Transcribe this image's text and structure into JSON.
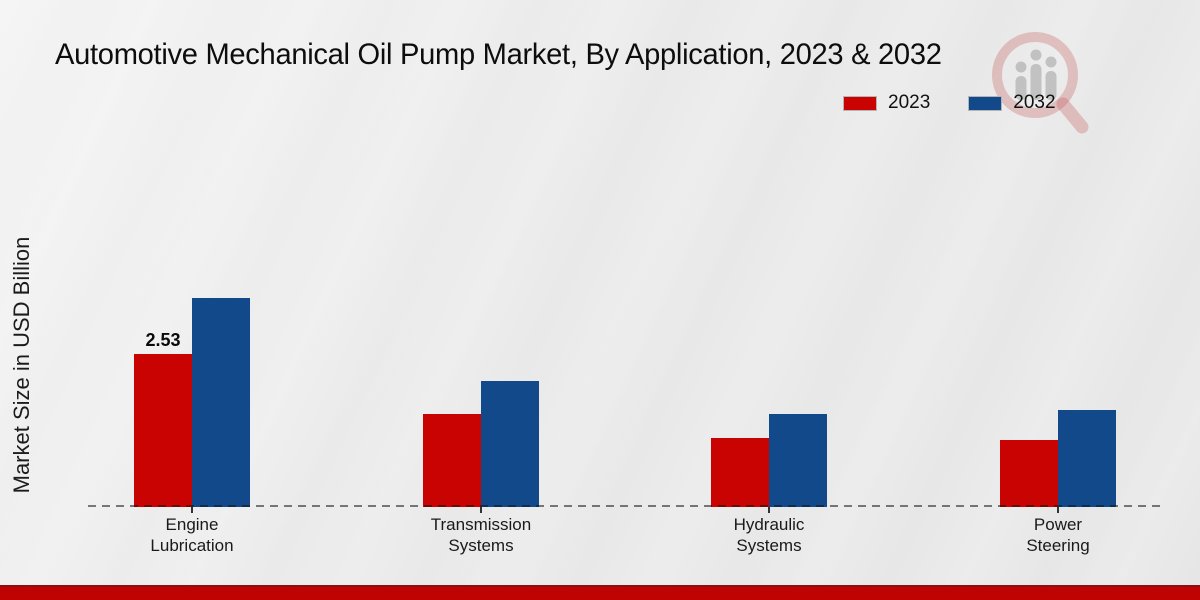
{
  "title": "Automotive Mechanical Oil Pump Market, By Application, 2023 & 2032",
  "y_axis_label": "Market Size in USD Billion",
  "legend": {
    "items": [
      {
        "label": "2023",
        "color": "#c90202"
      },
      {
        "label": "2032",
        "color": "#11498a"
      }
    ]
  },
  "colors": {
    "series_2023": "#c90202",
    "series_2032": "#11498a",
    "footer_accent": "#bf0303",
    "axis_dash": "#333333",
    "background": "#eaeaea"
  },
  "watermark_icon": "magnifier-bar-chart-logo",
  "chart_data": {
    "type": "bar",
    "categories": [
      "Engine Lubrication",
      "Transmission Systems",
      "Hydraulic Systems",
      "Power Steering"
    ],
    "series": [
      {
        "name": "2023",
        "color": "#c90202",
        "values": [
          2.53,
          1.54,
          1.14,
          1.1
        ]
      },
      {
        "name": "2032",
        "color": "#11498a",
        "values": [
          3.46,
          2.08,
          1.54,
          1.6
        ]
      }
    ],
    "bar_labels": [
      {
        "series_index": 0,
        "category_index": 0,
        "text": "2.53"
      }
    ],
    "title": "Automotive Mechanical Oil Pump Market, By Application, 2023 & 2032",
    "xlabel": "",
    "ylabel": "Market Size in USD Billion",
    "ylim": [
      0,
      4
    ],
    "grid": false,
    "legend_position": "top-right"
  }
}
